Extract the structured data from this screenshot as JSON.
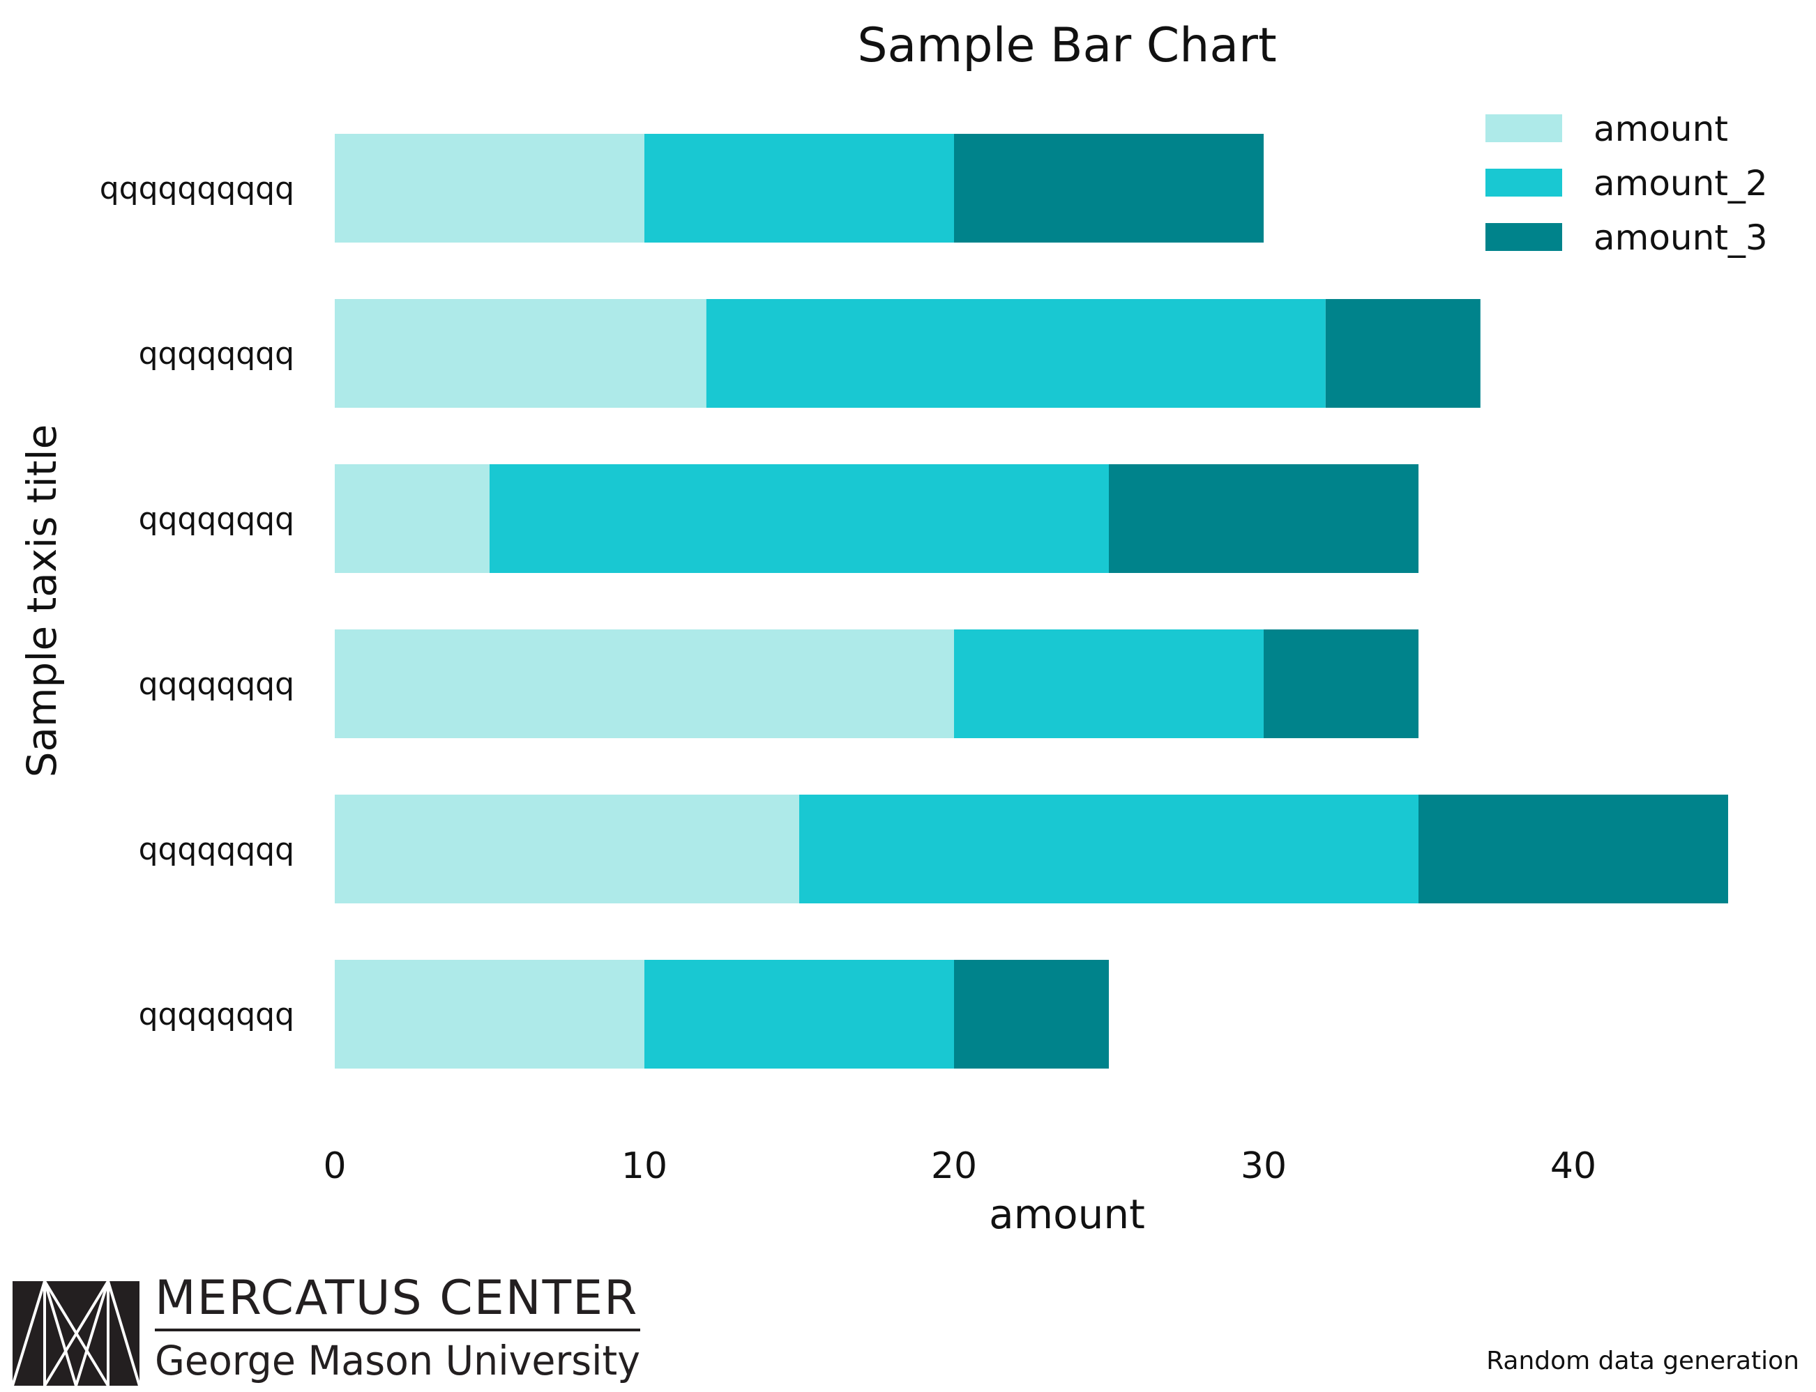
{
  "chart_data": {
    "type": "bar",
    "orientation": "horizontal",
    "stacked": true,
    "title": "Sample Bar Chart",
    "xlabel": "amount",
    "ylabel": "Sample taxis title",
    "xlim": [
      0,
      45
    ],
    "xticks": [
      0,
      10,
      20,
      30,
      40
    ],
    "grid": false,
    "legend_position": "top-right",
    "categories": [
      "qqqqqqqqqq",
      "qqqqqqqq",
      "qqqqqqqq",
      "qqqqqqqq",
      "qqqqqqqq",
      "qqqqqqqq"
    ],
    "series": [
      {
        "name": "amount",
        "color": "#aeeae9",
        "values": [
          10,
          12,
          5,
          20,
          15,
          10
        ]
      },
      {
        "name": "amount_2",
        "color": "#19c8d2",
        "values": [
          10,
          20,
          20,
          10,
          20,
          10
        ]
      },
      {
        "name": "amount_3",
        "color": "#00838b",
        "values": [
          10,
          5,
          10,
          5,
          10,
          5
        ]
      }
    ]
  },
  "branding": {
    "logo_line1": "MERCATUS CENTER",
    "logo_line2": "George Mason University",
    "logo_color": "#231f20"
  },
  "footnote": "Random data generation"
}
